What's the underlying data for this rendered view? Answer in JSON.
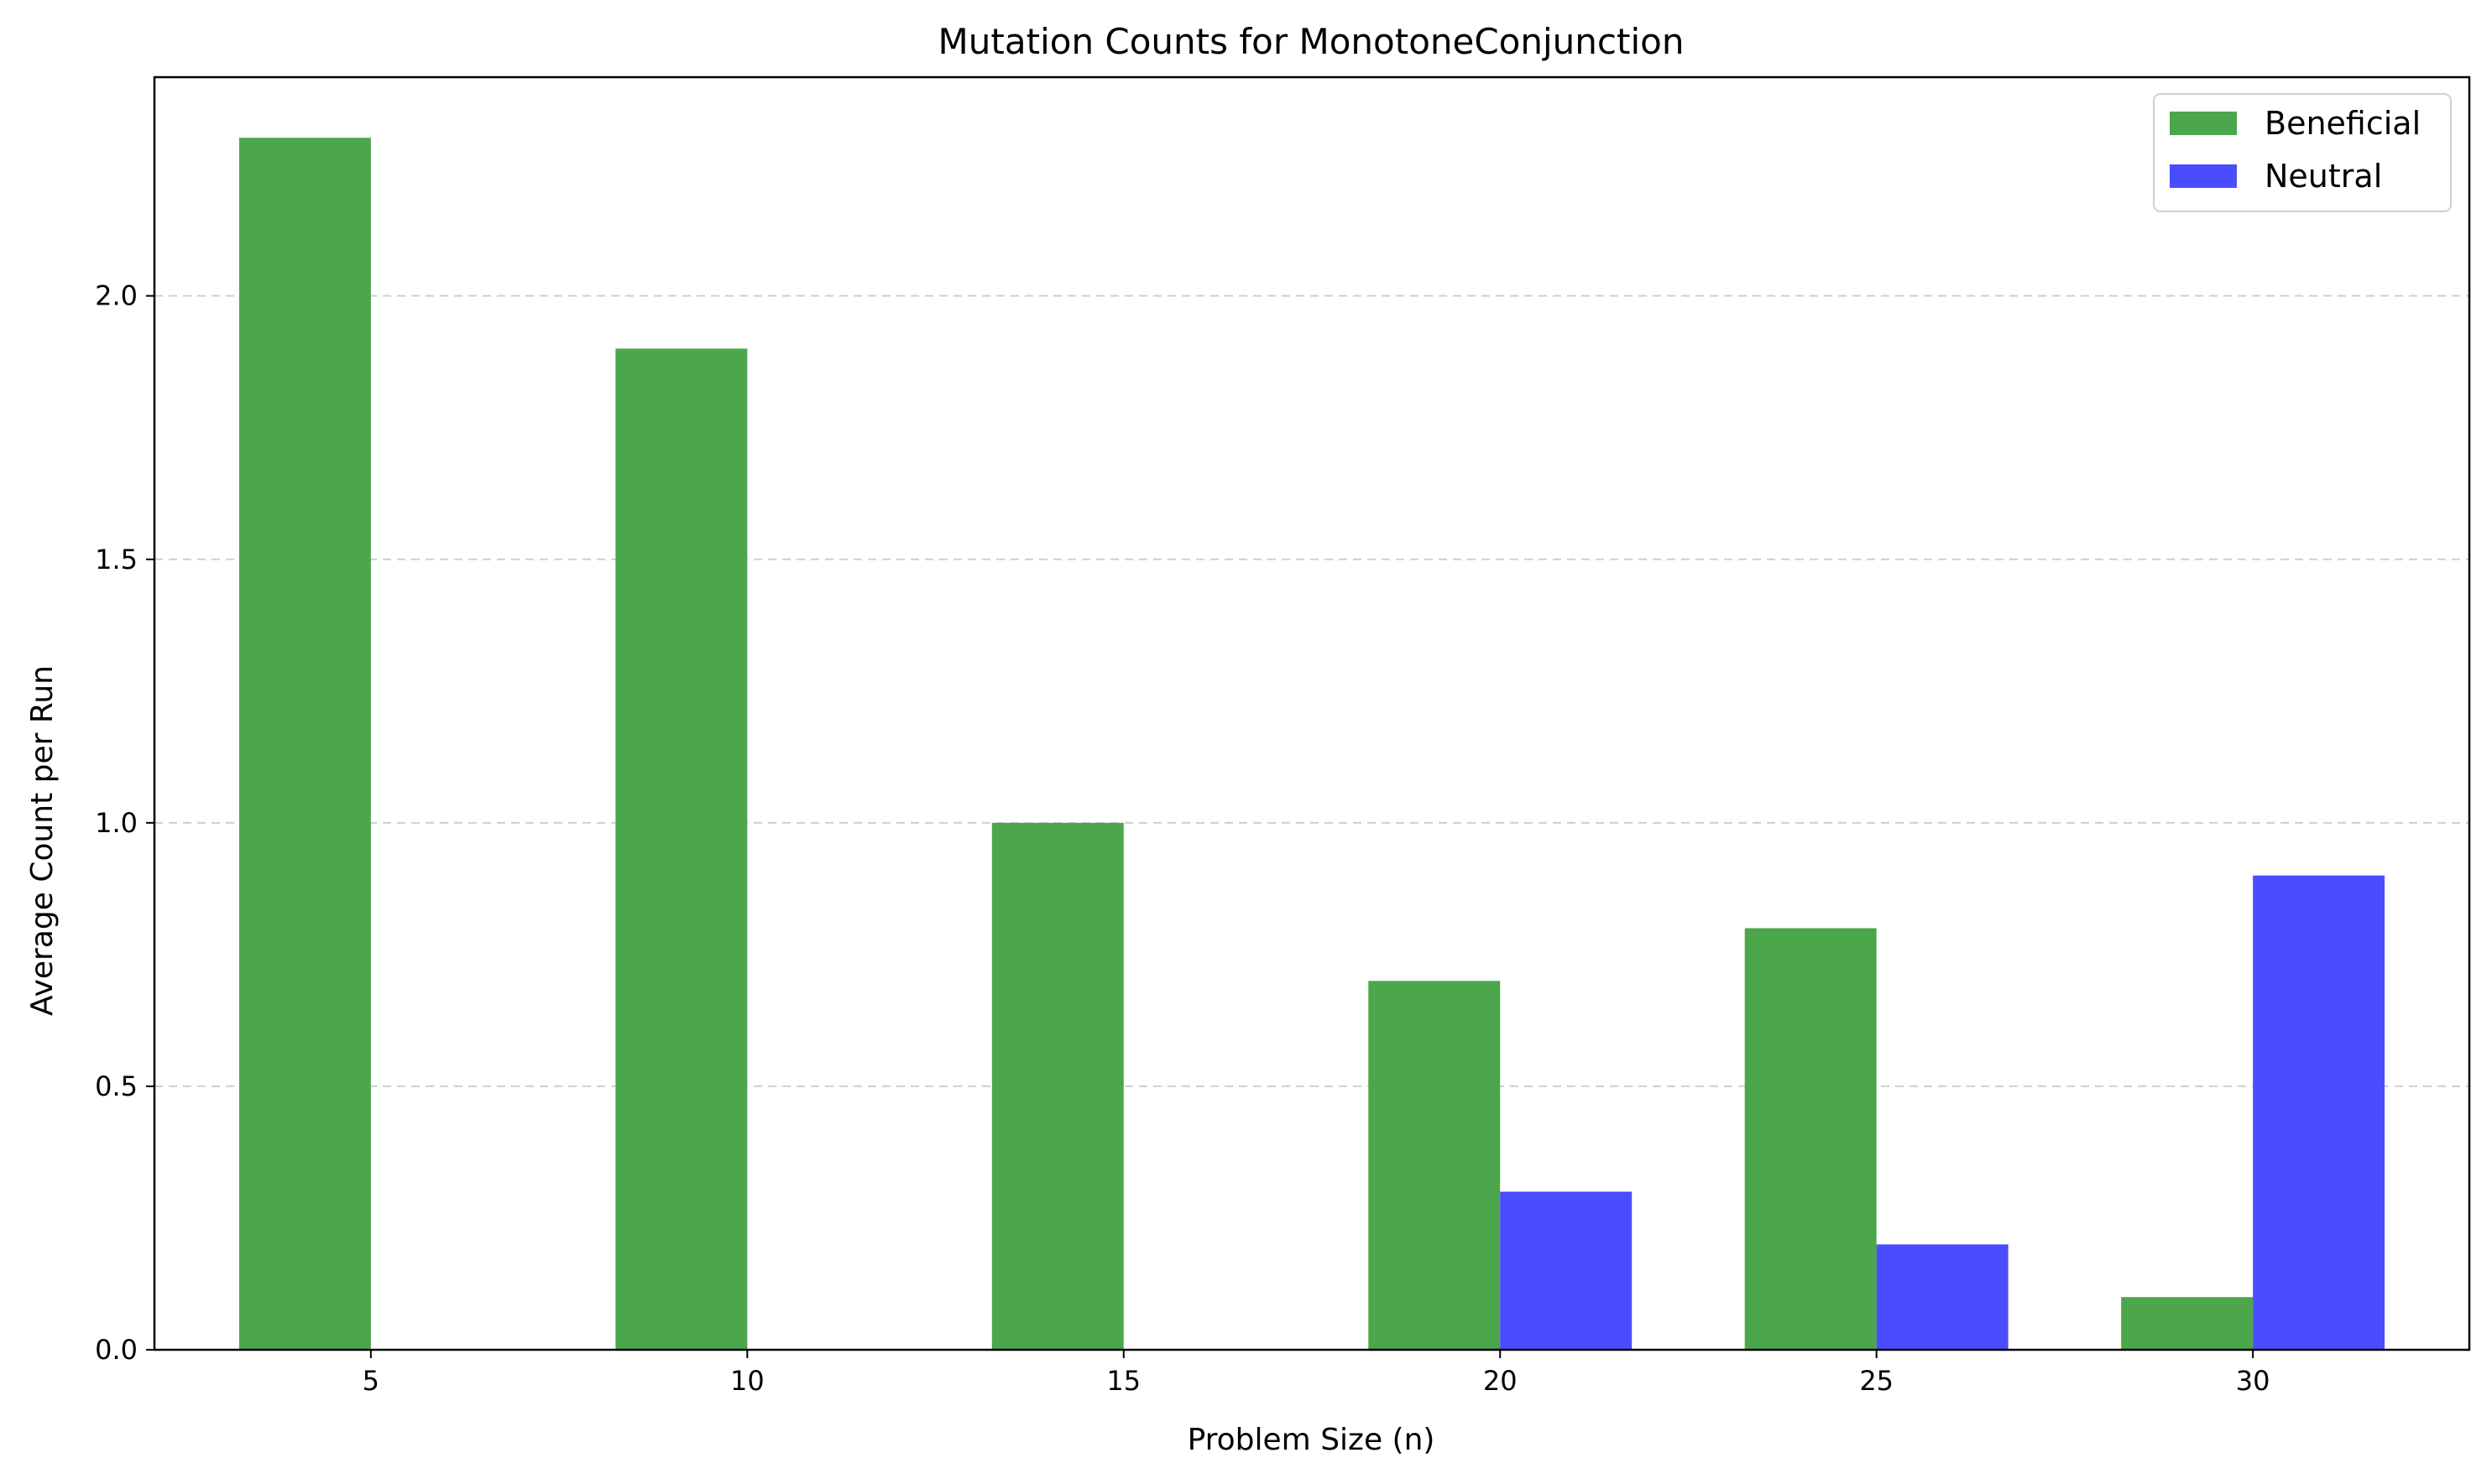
{
  "chart_data": {
    "type": "bar",
    "title": "Mutation Counts for MonotoneConjunction",
    "xlabel": "Problem Size (n)",
    "ylabel": "Average Count per Run",
    "categories": [
      "5",
      "10",
      "15",
      "20",
      "25",
      "30"
    ],
    "series": [
      {
        "name": "Beneficial",
        "color": "#4ca64c",
        "values": [
          2.3,
          1.9,
          1.0,
          0.7,
          0.8,
          0.1
        ]
      },
      {
        "name": "Neutral",
        "color": "#4c4cff",
        "values": [
          0.0,
          0.0,
          0.0,
          0.3,
          0.2,
          0.9
        ]
      }
    ],
    "yticks": [
      "0.0",
      "0.5",
      "1.0",
      "1.5",
      "2.0"
    ],
    "ylim": [
      0,
      2.415
    ],
    "grid": "y-dashed",
    "legend_position": "top-right"
  }
}
